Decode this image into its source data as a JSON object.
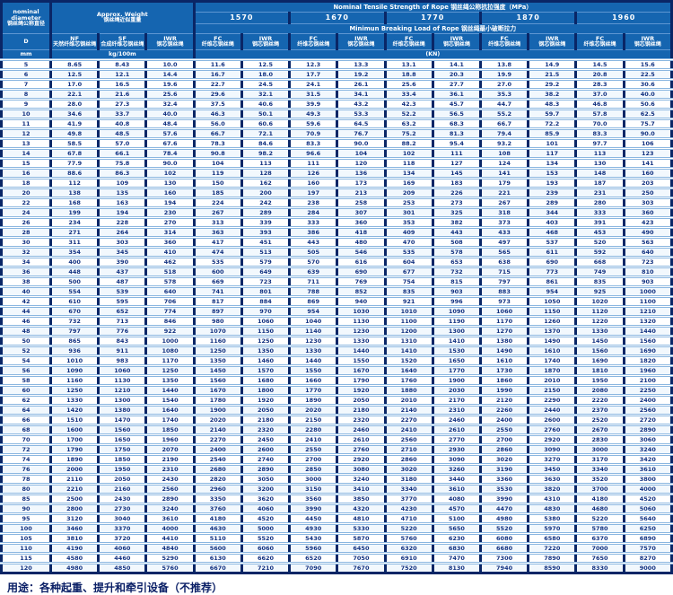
{
  "header": {
    "diameter": {
      "en_line1": "nominal",
      "en_line2": "diameter",
      "zh": "钢丝绳公称直径",
      "symbol": "D",
      "unit": "mm"
    },
    "weight": {
      "title_en": "Approx. Weight",
      "title_zh": "钢丝绳近似重量",
      "unit": "kg/100m",
      "cols": [
        {
          "code": "NF",
          "zh": "天然纤维芯钢丝绳"
        },
        {
          "code": "SF",
          "zh": "合成纤维芯钢丝绳"
        },
        {
          "code": "IWR",
          "zh": "钢芯钢丝绳"
        }
      ]
    },
    "strength": {
      "title": "Nominal Tensile Strength of Rope 钢丝绳公称抗拉强度（MPa）",
      "grades": [
        "1570",
        "1670",
        "1770",
        "1870",
        "1960"
      ]
    },
    "breaking": {
      "title": "Minimun Breaking Load of Rope 钢丝绳最小破断拉力",
      "unit": "(KN)",
      "fc": {
        "code": "FC",
        "zh": "纤维芯钢丝绳"
      },
      "iwr": {
        "code": "IWR",
        "zh": "钢芯钢丝绳"
      }
    }
  },
  "colors": {
    "header_blue": "#1565b0",
    "border_navy": "#0a2666",
    "row_line": "#8ab6e0",
    "text_navy": "#123180"
  },
  "rows": [
    [
      "5",
      "8.65",
      "8.43",
      "10.0",
      "11.6",
      "12.5",
      "12.3",
      "13.3",
      "13.1",
      "14.1",
      "13.8",
      "14.9",
      "14.5",
      "15.6"
    ],
    [
      "6",
      "12.5",
      "12.1",
      "14.4",
      "16.7",
      "18.0",
      "17.7",
      "19.2",
      "18.8",
      "20.3",
      "19.9",
      "21.5",
      "20.8",
      "22.5"
    ],
    [
      "7",
      "17.0",
      "16.5",
      "19.6",
      "22.7",
      "24.5",
      "24.1",
      "26.1",
      "25.6",
      "27.7",
      "27.0",
      "29.2",
      "28.3",
      "30.6"
    ],
    [
      "8",
      "22.1",
      "21.6",
      "25.6",
      "29.6",
      "32.1",
      "31.5",
      "34.1",
      "33.4",
      "36.1",
      "35.3",
      "38.2",
      "37.0",
      "40.0"
    ],
    [
      "9",
      "28.0",
      "27.3",
      "32.4",
      "37.5",
      "40.6",
      "39.9",
      "43.2",
      "42.3",
      "45.7",
      "44.7",
      "48.3",
      "46.8",
      "50.6"
    ],
    [
      "10",
      "34.6",
      "33.7",
      "40.0",
      "46.3",
      "50.1",
      "49.3",
      "53.3",
      "52.2",
      "56.5",
      "55.2",
      "59.7",
      "57.8",
      "62.5"
    ],
    [
      "11",
      "41.9",
      "40.8",
      "48.4",
      "56.0",
      "60.6",
      "59.6",
      "64.5",
      "63.2",
      "68.3",
      "66.7",
      "72.2",
      "70.0",
      "75.7"
    ],
    [
      "12",
      "49.8",
      "48.5",
      "57.6",
      "66.7",
      "72.1",
      "70.9",
      "76.7",
      "75.2",
      "81.3",
      "79.4",
      "85.9",
      "83.3",
      "90.0"
    ],
    [
      "13",
      "58.5",
      "57.0",
      "67.6",
      "78.3",
      "84.6",
      "83.3",
      "90.0",
      "88.2",
      "95.4",
      "93.2",
      "101",
      "97.7",
      "106"
    ],
    [
      "14",
      "67.8",
      "66.1",
      "78.4",
      "90.8",
      "98.2",
      "96.6",
      "104",
      "102",
      "111",
      "108",
      "117",
      "113",
      "123"
    ],
    [
      "15",
      "77.9",
      "75.8",
      "90.0",
      "104",
      "113",
      "111",
      "120",
      "118",
      "127",
      "124",
      "134",
      "130",
      "141"
    ],
    [
      "16",
      "88.6",
      "86.3",
      "102",
      "119",
      "128",
      "126",
      "136",
      "134",
      "145",
      "141",
      "153",
      "148",
      "160"
    ],
    [
      "18",
      "112",
      "109",
      "130",
      "150",
      "162",
      "160",
      "173",
      "169",
      "183",
      "179",
      "193",
      "187",
      "203"
    ],
    [
      "20",
      "138",
      "135",
      "160",
      "185",
      "200",
      "197",
      "213",
      "209",
      "226",
      "221",
      "239",
      "231",
      "250"
    ],
    [
      "22",
      "168",
      "163",
      "194",
      "224",
      "242",
      "238",
      "258",
      "253",
      "273",
      "267",
      "289",
      "280",
      "303"
    ],
    [
      "24",
      "199",
      "194",
      "230",
      "267",
      "289",
      "284",
      "307",
      "301",
      "325",
      "318",
      "344",
      "333",
      "360"
    ],
    [
      "26",
      "234",
      "228",
      "270",
      "313",
      "339",
      "333",
      "360",
      "353",
      "382",
      "373",
      "403",
      "391",
      "423"
    ],
    [
      "28",
      "271",
      "264",
      "314",
      "363",
      "393",
      "386",
      "418",
      "409",
      "443",
      "433",
      "468",
      "453",
      "490"
    ],
    [
      "30",
      "311",
      "303",
      "360",
      "417",
      "451",
      "443",
      "480",
      "470",
      "508",
      "497",
      "537",
      "520",
      "563"
    ],
    [
      "32",
      "354",
      "345",
      "410",
      "474",
      "513",
      "505",
      "546",
      "535",
      "578",
      "565",
      "611",
      "592",
      "640"
    ],
    [
      "34",
      "400",
      "390",
      "462",
      "535",
      "579",
      "570",
      "616",
      "604",
      "653",
      "638",
      "690",
      "668",
      "723"
    ],
    [
      "36",
      "448",
      "437",
      "518",
      "600",
      "649",
      "639",
      "690",
      "677",
      "732",
      "715",
      "773",
      "749",
      "810"
    ],
    [
      "38",
      "500",
      "487",
      "578",
      "669",
      "723",
      "711",
      "769",
      "754",
      "815",
      "797",
      "861",
      "835",
      "903"
    ],
    [
      "40",
      "554",
      "539",
      "640",
      "741",
      "801",
      "788",
      "852",
      "835",
      "903",
      "883",
      "954",
      "925",
      "1000"
    ],
    [
      "42",
      "610",
      "595",
      "706",
      "817",
      "884",
      "869",
      "940",
      "921",
      "996",
      "973",
      "1050",
      "1020",
      "1100"
    ],
    [
      "44",
      "670",
      "652",
      "774",
      "897",
      "970",
      "954",
      "1030",
      "1010",
      "1090",
      "1060",
      "1150",
      "1120",
      "1210"
    ],
    [
      "46",
      "732",
      "713",
      "846",
      "980",
      "1060",
      "1040",
      "1130",
      "1100",
      "1190",
      "1170",
      "1260",
      "1220",
      "1320"
    ],
    [
      "48",
      "797",
      "776",
      "922",
      "1070",
      "1150",
      "1140",
      "1230",
      "1200",
      "1300",
      "1270",
      "1370",
      "1330",
      "1440"
    ],
    [
      "50",
      "865",
      "843",
      "1000",
      "1160",
      "1250",
      "1230",
      "1330",
      "1310",
      "1410",
      "1380",
      "1490",
      "1450",
      "1560"
    ],
    [
      "52",
      "936",
      "911",
      "1080",
      "1250",
      "1350",
      "1330",
      "1440",
      "1410",
      "1530",
      "1490",
      "1610",
      "1560",
      "1690"
    ],
    [
      "54",
      "1010",
      "983",
      "1170",
      "1350",
      "1460",
      "1440",
      "1550",
      "1520",
      "1650",
      "1610",
      "1740",
      "1690",
      "1820"
    ],
    [
      "56",
      "1090",
      "1060",
      "1250",
      "1450",
      "1570",
      "1550",
      "1670",
      "1640",
      "1770",
      "1730",
      "1870",
      "1810",
      "1960"
    ],
    [
      "58",
      "1160",
      "1130",
      "1350",
      "1560",
      "1680",
      "1660",
      "1790",
      "1760",
      "1900",
      "1860",
      "2010",
      "1950",
      "2100"
    ],
    [
      "60",
      "1250",
      "1210",
      "1440",
      "1670",
      "1800",
      "1770",
      "1920",
      "1880",
      "2030",
      "1990",
      "2150",
      "2080",
      "2250"
    ],
    [
      "62",
      "1330",
      "1300",
      "1540",
      "1780",
      "1920",
      "1890",
      "2050",
      "2010",
      "2170",
      "2120",
      "2290",
      "2220",
      "2400"
    ],
    [
      "64",
      "1420",
      "1380",
      "1640",
      "1900",
      "2050",
      "2020",
      "2180",
      "2140",
      "2310",
      "2260",
      "2440",
      "2370",
      "2560"
    ],
    [
      "66",
      "1510",
      "1470",
      "1740",
      "2020",
      "2180",
      "2150",
      "2320",
      "2270",
      "2460",
      "2400",
      "2600",
      "2520",
      "2720"
    ],
    [
      "68",
      "1600",
      "1560",
      "1850",
      "2140",
      "2320",
      "2280",
      "2460",
      "2410",
      "2610",
      "2550",
      "2760",
      "2670",
      "2890"
    ],
    [
      "70",
      "1700",
      "1650",
      "1960",
      "2270",
      "2450",
      "2410",
      "2610",
      "2560",
      "2770",
      "2700",
      "2920",
      "2830",
      "3060"
    ],
    [
      "72",
      "1790",
      "1750",
      "2070",
      "2400",
      "2600",
      "2550",
      "2760",
      "2710",
      "2930",
      "2860",
      "3090",
      "3000",
      "3240"
    ],
    [
      "74",
      "1890",
      "1850",
      "2190",
      "2540",
      "2740",
      "2700",
      "2920",
      "2860",
      "3090",
      "3020",
      "3270",
      "3170",
      "3420"
    ],
    [
      "76",
      "2000",
      "1950",
      "2310",
      "2680",
      "2890",
      "2850",
      "3080",
      "3020",
      "3260",
      "3190",
      "3450",
      "3340",
      "3610"
    ],
    [
      "78",
      "2110",
      "2050",
      "2430",
      "2820",
      "3050",
      "3000",
      "3240",
      "3180",
      "3440",
      "3360",
      "3630",
      "3520",
      "3800"
    ],
    [
      "80",
      "2210",
      "2160",
      "2560",
      "2960",
      "3200",
      "3150",
      "3410",
      "3340",
      "3610",
      "3530",
      "3820",
      "3700",
      "4000"
    ],
    [
      "85",
      "2500",
      "2430",
      "2890",
      "3350",
      "3620",
      "3560",
      "3850",
      "3770",
      "4080",
      "3990",
      "4310",
      "4180",
      "4520"
    ],
    [
      "90",
      "2800",
      "2730",
      "3240",
      "3760",
      "4060",
      "3990",
      "4320",
      "4230",
      "4570",
      "4470",
      "4830",
      "4680",
      "5060"
    ],
    [
      "95",
      "3120",
      "3040",
      "3610",
      "4180",
      "4520",
      "4450",
      "4810",
      "4710",
      "5100",
      "4980",
      "5380",
      "5220",
      "5640"
    ],
    [
      "100",
      "3460",
      "3370",
      "4000",
      "4630",
      "5000",
      "4930",
      "5330",
      "5220",
      "5650",
      "5520",
      "5970",
      "5780",
      "6250"
    ],
    [
      "105",
      "3810",
      "3720",
      "4410",
      "5110",
      "5520",
      "5430",
      "5870",
      "5760",
      "6230",
      "6080",
      "6580",
      "6370",
      "6890"
    ],
    [
      "110",
      "4190",
      "4060",
      "4840",
      "5600",
      "6060",
      "5960",
      "6450",
      "6320",
      "6830",
      "6680",
      "7220",
      "7000",
      "7570"
    ],
    [
      "115",
      "4580",
      "4460",
      "5290",
      "6130",
      "6620",
      "6520",
      "7050",
      "6910",
      "7470",
      "7300",
      "7890",
      "7650",
      "8270"
    ],
    [
      "120",
      "4980",
      "4850",
      "5760",
      "6670",
      "7210",
      "7090",
      "7670",
      "7520",
      "8130",
      "7940",
      "8590",
      "8330",
      "9000"
    ]
  ],
  "footer": {
    "note": "用途：各种起重、提升和牵引设备（不推荐）"
  }
}
